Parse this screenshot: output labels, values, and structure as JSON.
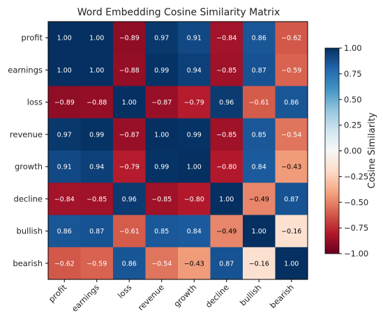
{
  "chart_data": {
    "type": "heatmap",
    "title": "Word Embedding Cosine Similarity Matrix",
    "rows": [
      "profit",
      "earnings",
      "loss",
      "revenue",
      "growth",
      "decline",
      "bullish",
      "bearish"
    ],
    "columns": [
      "profit",
      "earnings",
      "loss",
      "revenue",
      "growth",
      "decline",
      "bullish",
      "bearish"
    ],
    "values": [
      [
        1.0,
        1.0,
        -0.89,
        0.97,
        0.91,
        -0.84,
        0.86,
        -0.62
      ],
      [
        1.0,
        1.0,
        -0.88,
        0.99,
        0.94,
        -0.85,
        0.87,
        -0.59
      ],
      [
        -0.89,
        -0.88,
        1.0,
        -0.87,
        -0.79,
        0.96,
        -0.61,
        0.86
      ],
      [
        0.97,
        0.99,
        -0.87,
        1.0,
        0.99,
        -0.85,
        0.85,
        -0.54
      ],
      [
        0.91,
        0.94,
        -0.79,
        0.99,
        1.0,
        -0.8,
        0.84,
        -0.43
      ],
      [
        -0.84,
        -0.85,
        0.96,
        -0.85,
        -0.8,
        1.0,
        -0.49,
        0.87
      ],
      [
        0.86,
        0.87,
        -0.61,
        0.85,
        0.84,
        -0.49,
        1.0,
        -0.16
      ],
      [
        -0.62,
        -0.59,
        0.86,
        -0.54,
        -0.43,
        0.87,
        -0.16,
        1.0
      ]
    ],
    "colormap": "RdBu",
    "vmin": -1.0,
    "vmax": 1.0,
    "colorbar": {
      "label": "Cosine Similarity",
      "ticks": [
        "1.00",
        "0.75",
        "0.50",
        "0.25",
        "0.00",
        "−0.25",
        "−0.50",
        "−0.75",
        "−1.00"
      ],
      "tick_values": [
        1.0,
        0.75,
        0.5,
        0.25,
        0.0,
        -0.25,
        -0.5,
        -0.75,
        -1.0
      ]
    },
    "grid": false
  }
}
